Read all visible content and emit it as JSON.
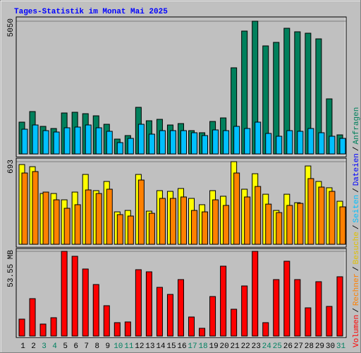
{
  "chart_data": {
    "type": "bar",
    "title": "Tages-Statistik im Monat Mai 2025",
    "categories": [
      "1",
      "2",
      "3",
      "4",
      "5",
      "6",
      "7",
      "8",
      "9",
      "10",
      "11",
      "12",
      "13",
      "14",
      "15",
      "16",
      "17",
      "18",
      "19",
      "20",
      "21",
      "22",
      "23",
      "24",
      "25",
      "26",
      "27",
      "28",
      "29",
      "30",
      "31"
    ],
    "weekend_categories": [
      "3",
      "4",
      "10",
      "11",
      "17",
      "18",
      "24",
      "25",
      "31"
    ],
    "weekend_color": "#008060",
    "legend_separator": "/",
    "legend": [
      {
        "label": "Volumen",
        "color": "#ff0000"
      },
      {
        "label": "Rechner",
        "color": "#ff8000"
      },
      {
        "label": "Besuche",
        "color": "#e0c000"
      },
      {
        "label": "Seiten",
        "color": "#00c0ff"
      },
      {
        "label": "Dateien",
        "color": "#0000ff"
      },
      {
        "label": "Anfragen",
        "color": "#00805c"
      }
    ],
    "panels": [
      {
        "ylim": [
          0,
          5050
        ],
        "yticks": [
          5050
        ],
        "series": [
          {
            "color": "#00805c",
            "values": [
              1209,
              1612,
              1048,
              967,
              1558,
              1585,
              1531,
              1450,
              1128,
              564,
              698,
              1773,
              1262,
              1316,
              1101,
              1155,
              886,
              806,
              1235,
              1370,
              3277,
              4674,
              5050,
              4110,
              4244,
              4781,
              4647,
              4593,
              4378,
              2095,
              725
            ]
          },
          {
            "color": "#00c0ff",
            "values": [
              940,
              1101,
              886,
              833,
              994,
              1021,
              1101,
              994,
              860,
              430,
              591,
              1128,
              752,
              886,
              886,
              886,
              806,
              698,
              913,
              886,
              1048,
              967,
              1209,
              779,
              672,
              886,
              860,
              967,
              806,
              672,
              591
            ]
          }
        ]
      },
      {
        "ylim": [
          0,
          693
        ],
        "yticks": [
          693
        ],
        "series": [
          {
            "color": "#ffff00",
            "values": [
              669,
              651,
              426,
              426,
              373,
              438,
              586,
              450,
              527,
              272,
              284,
              586,
              278,
              450,
              444,
              468,
              385,
              332,
              450,
              403,
              693,
              462,
              592,
              420,
              284,
              420,
              349,
              657,
              527,
              474,
              361
            ]
          },
          {
            "color": "#ff8000",
            "values": [
              598,
              610,
              438,
              373,
              302,
              332,
              456,
              426,
              462,
              249,
              237,
              539,
              260,
              385,
              385,
              397,
              284,
              272,
              373,
              326,
              598,
              397,
              485,
              337,
              266,
              326,
              343,
              551,
              480,
              444,
              314
            ]
          }
        ]
      },
      {
        "ylim": [
          0,
          53.55
        ],
        "yticks": [
          {
            "value": 53.55,
            "label": "53.55 MB"
          }
        ],
        "series": [
          {
            "color": "#ff0000",
            "values": [
              10.71,
              23.65,
              7.59,
              11.6,
              53.55,
              50.43,
              42.39,
              32.58,
              19.19,
              8.48,
              8.93,
              41.95,
              40.61,
              30.79,
              26.33,
              35.7,
              12.05,
              4.91,
              24.99,
              44.18,
              16.96,
              31.68,
              53.55,
              8.48,
              35.7,
              47.3,
              35.7,
              17.85,
              34.36,
              18.74,
              37.49
            ]
          }
        ]
      }
    ]
  }
}
